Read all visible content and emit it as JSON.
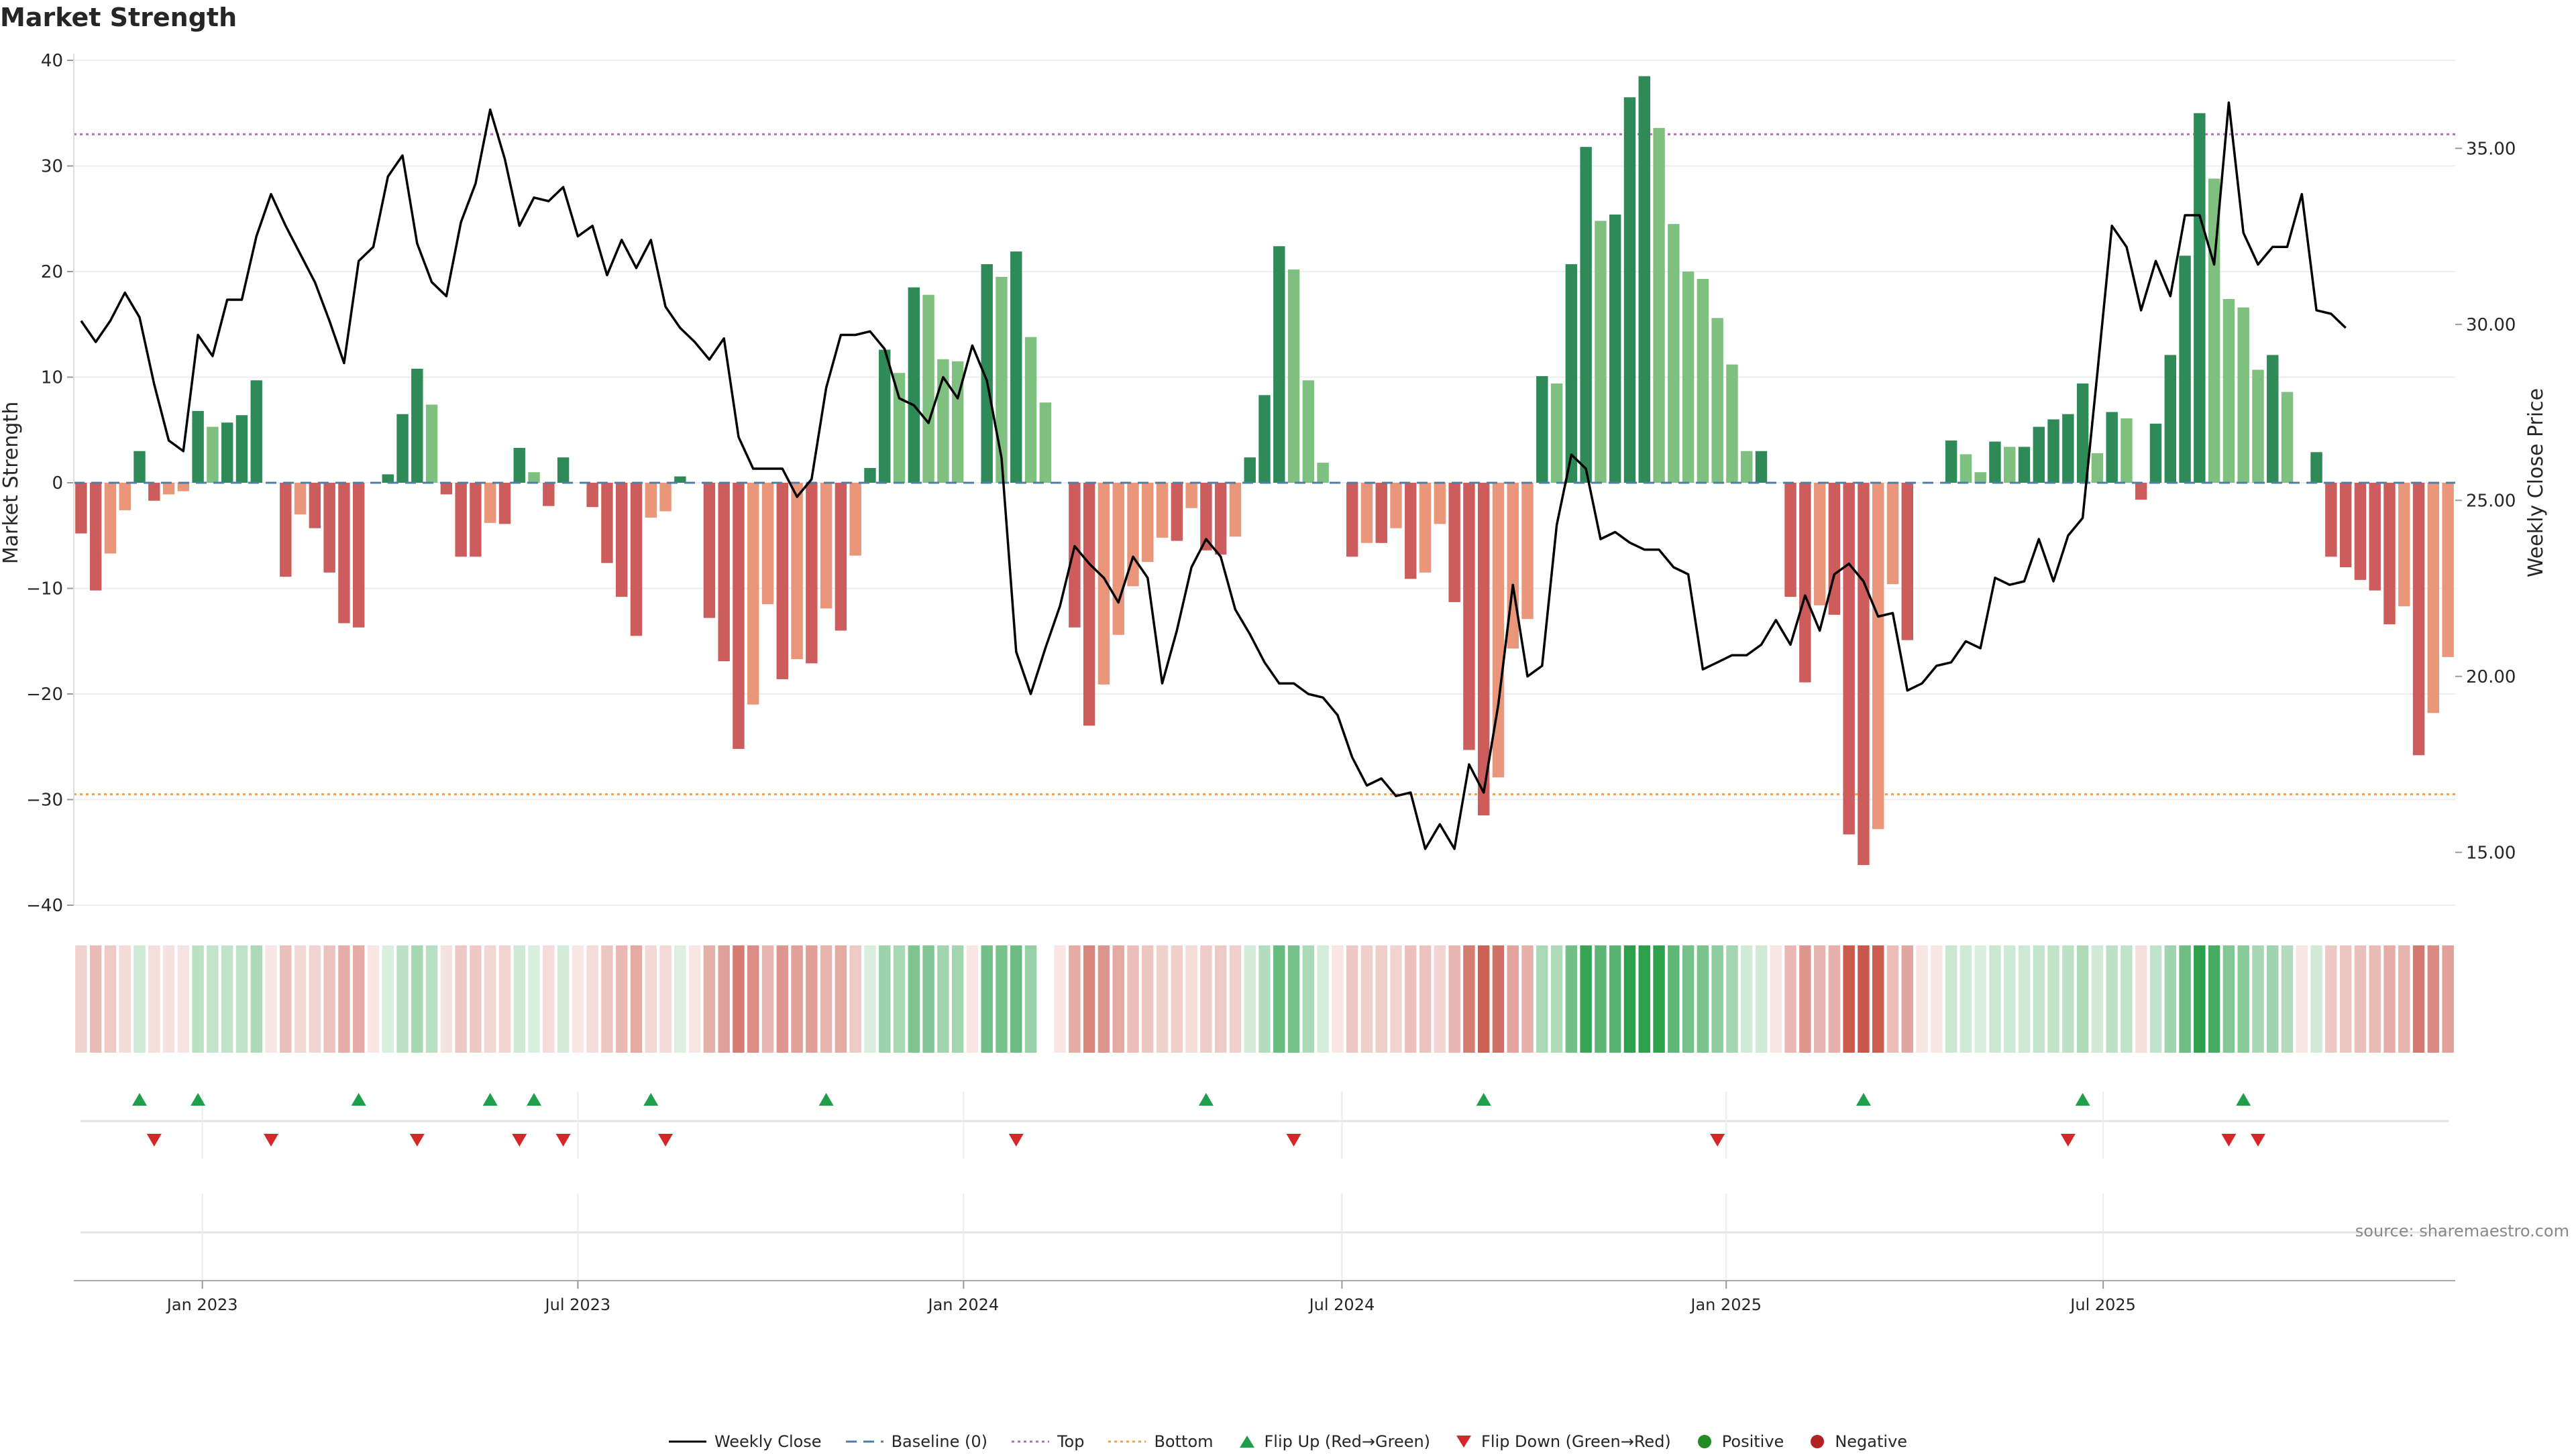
{
  "chart_data": {
    "type": "bar",
    "title": "Market Strength",
    "y_left_label": "Market Strength",
    "y_right_label": "Weekly Close Price",
    "y_left_ticks": [
      "40",
      "30",
      "20",
      "10",
      "0",
      "−10",
      "−20",
      "−30",
      "−40"
    ],
    "y_left_range": [
      -40,
      40
    ],
    "y_right_ticks": [
      "35.00",
      "30.00",
      "25.00",
      "20.00",
      "15.00"
    ],
    "y_right_range": [
      13.5,
      37.5
    ],
    "x_ticks": [
      "Jan 2023",
      "Jul 2023",
      "Jan 2024",
      "Jul 2024",
      "Jan 2025",
      "Jul 2025"
    ],
    "x_tick_weeks": [
      8.3,
      34,
      60.4,
      86.3,
      112.6,
      138.4
    ],
    "top_line": 33,
    "bottom_line": -29.5,
    "strength": [
      -4.8,
      -10.2,
      -6.7,
      -2.6,
      3,
      -1.7,
      -1.1,
      -0.8,
      6.8,
      5.3,
      5.7,
      6.4,
      9.7,
      0,
      -8.9,
      -3,
      -4.3,
      -8.5,
      -13.3,
      -13.7,
      0,
      0.8,
      6.5,
      10.8,
      7.4,
      -1.1,
      -7,
      -7,
      -3.8,
      -3.9,
      3.3,
      1,
      -2.2,
      2.4,
      0,
      -2.3,
      -7.6,
      -10.8,
      -14.5,
      -3.3,
      -2.7,
      0.6,
      0,
      -12.8,
      -16.9,
      -25.2,
      -21,
      -11.5,
      -18.6,
      -16.7,
      -17.1,
      -11.9,
      -14,
      -6.9,
      1.4,
      12.6,
      10.4,
      18.5,
      17.8,
      11.7,
      11.5,
      0,
      20.7,
      19.5,
      21.9,
      13.8,
      7.6,
      0,
      -13.7,
      -23,
      -19.1,
      -14.4,
      -9.8,
      -7.5,
      -5.2,
      -5.5,
      -2.4,
      -6.4,
      -6.8,
      -5.1,
      2.4,
      8.3,
      22.4,
      20.2,
      9.7,
      1.9,
      0,
      -7,
      -5.7,
      -5.7,
      -4.3,
      -9.1,
      -8.5,
      -3.9,
      -11.3,
      -25.3,
      -31.5,
      -27.9,
      -15.7,
      -12.9,
      10.1,
      9.4,
      20.7,
      31.8,
      24.8,
      25.4,
      36.5,
      38.5,
      33.6,
      24.5,
      20,
      19.3,
      15.6,
      11.2,
      3,
      3,
      0,
      -10.8,
      -18.9,
      -11.6,
      -12.5,
      -33.3,
      -36.2,
      -32.8,
      -9.6,
      -14.9,
      0,
      0,
      4,
      2.7,
      1,
      3.9,
      3.4,
      3.4,
      5.3,
      6,
      6.5,
      9.4,
      2.8,
      6.7,
      6.1,
      -1.6,
      5.6,
      12.1,
      21.5,
      35,
      28.8,
      17.4,
      16.6,
      10.7,
      12.1,
      8.6,
      0,
      2.9,
      -7,
      -8,
      -9.2,
      -10.2,
      -13.4,
      -11.7,
      -25.8,
      -21.8,
      -16.5
    ],
    "weekly_close": [
      30.1,
      29.5,
      30.1,
      30.9,
      30.2,
      28.3,
      26.7,
      26.4,
      29.7,
      29.1,
      30.7,
      30.7,
      32.5,
      33.7,
      32.8,
      32,
      31.2,
      30.1,
      28.9,
      31.8,
      32.2,
      34.2,
      34.8,
      32.3,
      31.2,
      30.8,
      32.9,
      34,
      36.1,
      34.7,
      32.8,
      33.6,
      33.5,
      33.9,
      32.5,
      32.8,
      31.4,
      32.4,
      31.6,
      32.4,
      30.5,
      29.9,
      29.5,
      29,
      29.6,
      26.8,
      25.9,
      25.9,
      25.9,
      25.1,
      25.6,
      28.2,
      29.7,
      29.7,
      29.8,
      29.3,
      27.9,
      27.7,
      27.2,
      28.5,
      27.9,
      29.4,
      28.4,
      26.2,
      20.7,
      19.5,
      20.8,
      22,
      23.7,
      23.2,
      22.8,
      22.1,
      23.4,
      22.8,
      19.8,
      21.3,
      23.1,
      23.9,
      23.4,
      21.9,
      21.2,
      20.4,
      19.8,
      19.8,
      19.5,
      19.4,
      18.9,
      17.7,
      16.9,
      17.1,
      16.6,
      16.7,
      15.1,
      15.8,
      15.1,
      17.5,
      16.7,
      19.2,
      22.6,
      20,
      20.3,
      24.3,
      26.3,
      25.9,
      23.9,
      24.1,
      23.8,
      23.6,
      23.6,
      23.1,
      22.9,
      20.2,
      20.4,
      20.6,
      20.6,
      20.9,
      21.6,
      20.9,
      22.3,
      21.3,
      22.9,
      23.2,
      22.7,
      21.7,
      21.8,
      19.6,
      19.8,
      20.3,
      20.4,
      21,
      20.8,
      22.8,
      22.6,
      22.7,
      23.9,
      22.7,
      24,
      24.5,
      28.6,
      32.8,
      32.2,
      30.4,
      31.8,
      30.8,
      33.1,
      33.1,
      31.7,
      36.3,
      32.6,
      31.7,
      32.2,
      32.2,
      33.7,
      30.4,
      30.3,
      29.9
    ]
  },
  "flip_up_weeks": [
    4,
    8,
    19,
    28,
    31,
    39,
    51,
    77,
    96,
    122,
    137,
    148
  ],
  "flip_down_weeks": [
    5,
    13,
    23,
    30,
    33,
    40,
    64,
    83,
    112,
    136,
    147,
    149
  ],
  "skip_heat_weeks": [
    66
  ],
  "colors": {
    "positive_strong": "#2e8b57",
    "positive_light": "#7fbf7f",
    "negative_strong": "#cd5c5c",
    "negative_light": "#e9967a",
    "price_line": "#000000",
    "top_line": "#b36bb3",
    "bottom_line": "#f0a04b",
    "baseline": "#4f7fa8",
    "flip_up": "#1f9e4b",
    "flip_down": "#d62728",
    "positive_dot": "#228b22",
    "negative_dot": "#b22222"
  },
  "source": "source: sharemaestro.com",
  "legend": {
    "weekly_close": "Weekly Close",
    "baseline": "Baseline (0)",
    "top": "Top",
    "bottom": "Bottom",
    "flip_up": "Flip Up (Red→Green)",
    "flip_down": "Flip Down (Green→Red)",
    "positive": "Positive",
    "negative": "Negative"
  }
}
